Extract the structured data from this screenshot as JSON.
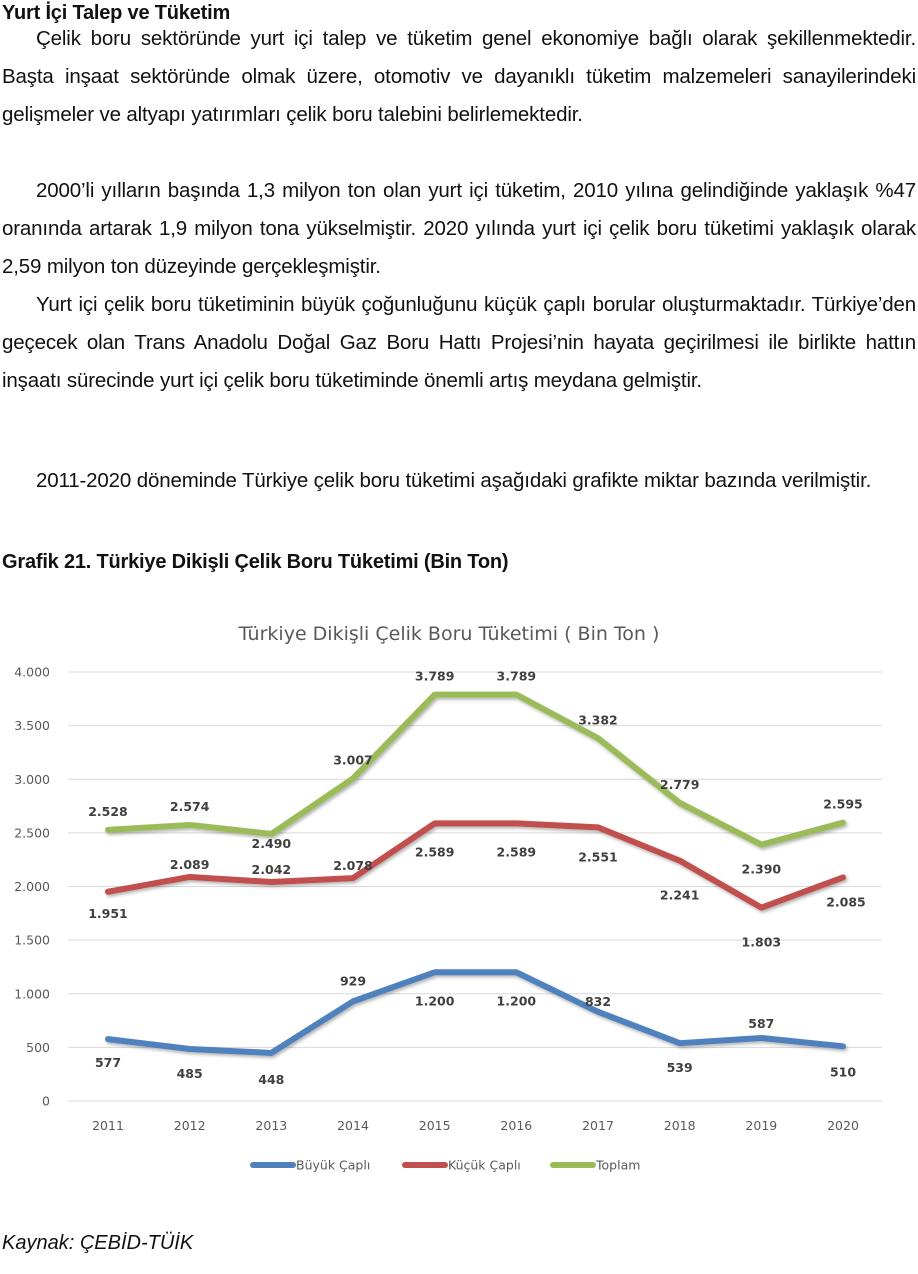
{
  "document": {
    "heading": "Yurt İçi Talep ve Tüketim",
    "paragraphs": [
      "Çelik boru sektöründe yurt içi talep ve tüketim genel ekonomiye bağlı olarak şekillenmektedir. Başta inşaat sektöründe olmak üzere, otomotiv ve dayanıklı tüketim malzemeleri sanayilerindeki gelişmeler ve altyapı yatırımları çelik boru talebini belirlemektedir.",
      "2000’li yılların başında 1,3 milyon ton olan yurt içi tüketim, 2010 yılına gelindiğinde yaklaşık %47 oranında artarak 1,9 milyon tona yükselmiştir. 2020 yılında yurt içi çelik boru tüketimi yaklaşık olarak 2,59 milyon ton düzeyinde gerçekleşmiştir.",
      "Yurt içi çelik boru tüketiminin büyük çoğunluğunu küçük çaplı borular oluşturmaktadır. Türkiye’den geçecek olan Trans Anadolu Doğal Gaz Boru Hattı Projesi’nin hayata geçirilmesi ile birlikte hattın inşaatı sürecinde yurt içi çelik boru tüketiminde önemli artış meydana gelmiştir.",
      "2011-2020 döneminde Türkiye çelik boru tüketimi aşağıdaki grafikte miktar bazında verilmiştir."
    ],
    "figure_caption": "Grafik 21. Türkiye Dikişli Çelik Boru Tüketimi (Bin Ton)",
    "source": "Kaynak: ÇEBİD-TÜİK"
  },
  "chart_data": {
    "type": "line",
    "title": "Türkiye Dikişli Çelik Boru Tüketimi ( Bin Ton )",
    "xlabel": "",
    "ylabel": "",
    "categories": [
      "2011",
      "2012",
      "2013",
      "2014",
      "2015",
      "2016",
      "2017",
      "2018",
      "2019",
      "2020"
    ],
    "yticks": [
      "0",
      "500",
      "1.000",
      "1.500",
      "2.000",
      "2.500",
      "3.000",
      "3.500",
      "4.000"
    ],
    "ylim": [
      0,
      4000
    ],
    "grid": true,
    "legend_position": "bottom",
    "series": [
      {
        "name": "Büyük Çaplı",
        "color": "#4F81BD",
        "values": [
          577,
          485,
          448,
          929,
          1200,
          1200,
          832,
          539,
          587,
          510
        ],
        "labels": [
          "577",
          "485",
          "448",
          "929",
          "1.200",
          "1.200",
          "832",
          "539",
          "587",
          "510"
        ]
      },
      {
        "name": "Küçük Çaplı",
        "color": "#C0504D",
        "values": [
          1951,
          2089,
          2042,
          2078,
          2589,
          2589,
          2551,
          2241,
          1803,
          2085
        ],
        "labels": [
          "1.951",
          "2.089",
          "2.042",
          "2.078",
          "2.589",
          "2.589",
          "2.551",
          "2.241",
          "1.803",
          "2.085"
        ]
      },
      {
        "name": "Toplam",
        "color": "#9BBB59",
        "values": [
          2528,
          2574,
          2490,
          3007,
          3789,
          3789,
          3382,
          2779,
          2390,
          2595
        ],
        "labels": [
          "2.528",
          "2.574",
          "2.490",
          "3.007",
          "3.789",
          "3.789",
          "3.382",
          "2.779",
          "2.390",
          "2.595"
        ]
      }
    ]
  }
}
